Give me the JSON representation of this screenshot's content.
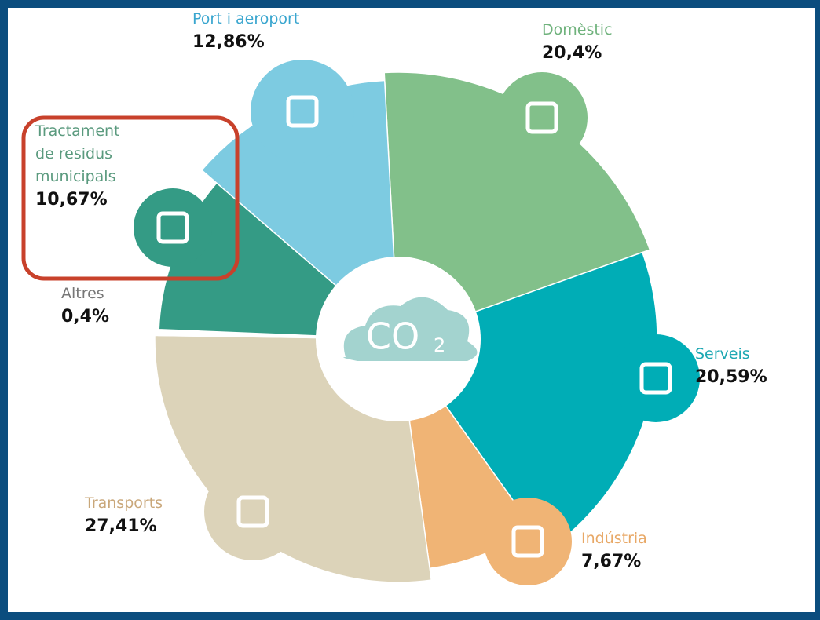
{
  "chart_data": {
    "type": "pie",
    "categories": [
      "Domèstic",
      "Serveis",
      "Indústria",
      "Transports",
      "Altres",
      "Tractament de residus municipals",
      "Port i aeroport"
    ],
    "values": [
      20.4,
      20.59,
      7.67,
      27.41,
      0.4,
      10.67,
      12.86
    ],
    "value_labels": [
      "20,4%",
      "20,59%",
      "7,67%",
      "27,41%",
      "0,4%",
      "10,67%",
      "12,86%"
    ],
    "colors": [
      "#82c08a",
      "#00adb6",
      "#f0b475",
      "#dcd3b9",
      "#ffffff",
      "#349b85",
      "#7dcbe1"
    ],
    "label_colors": [
      "#6fb27c",
      "#1ea8b3",
      "#e8a866",
      "#c9a77a",
      "#777777",
      "#5a9a7e",
      "#3aa6cf"
    ],
    "center_text": "CO",
    "center_sub": "2"
  }
}
